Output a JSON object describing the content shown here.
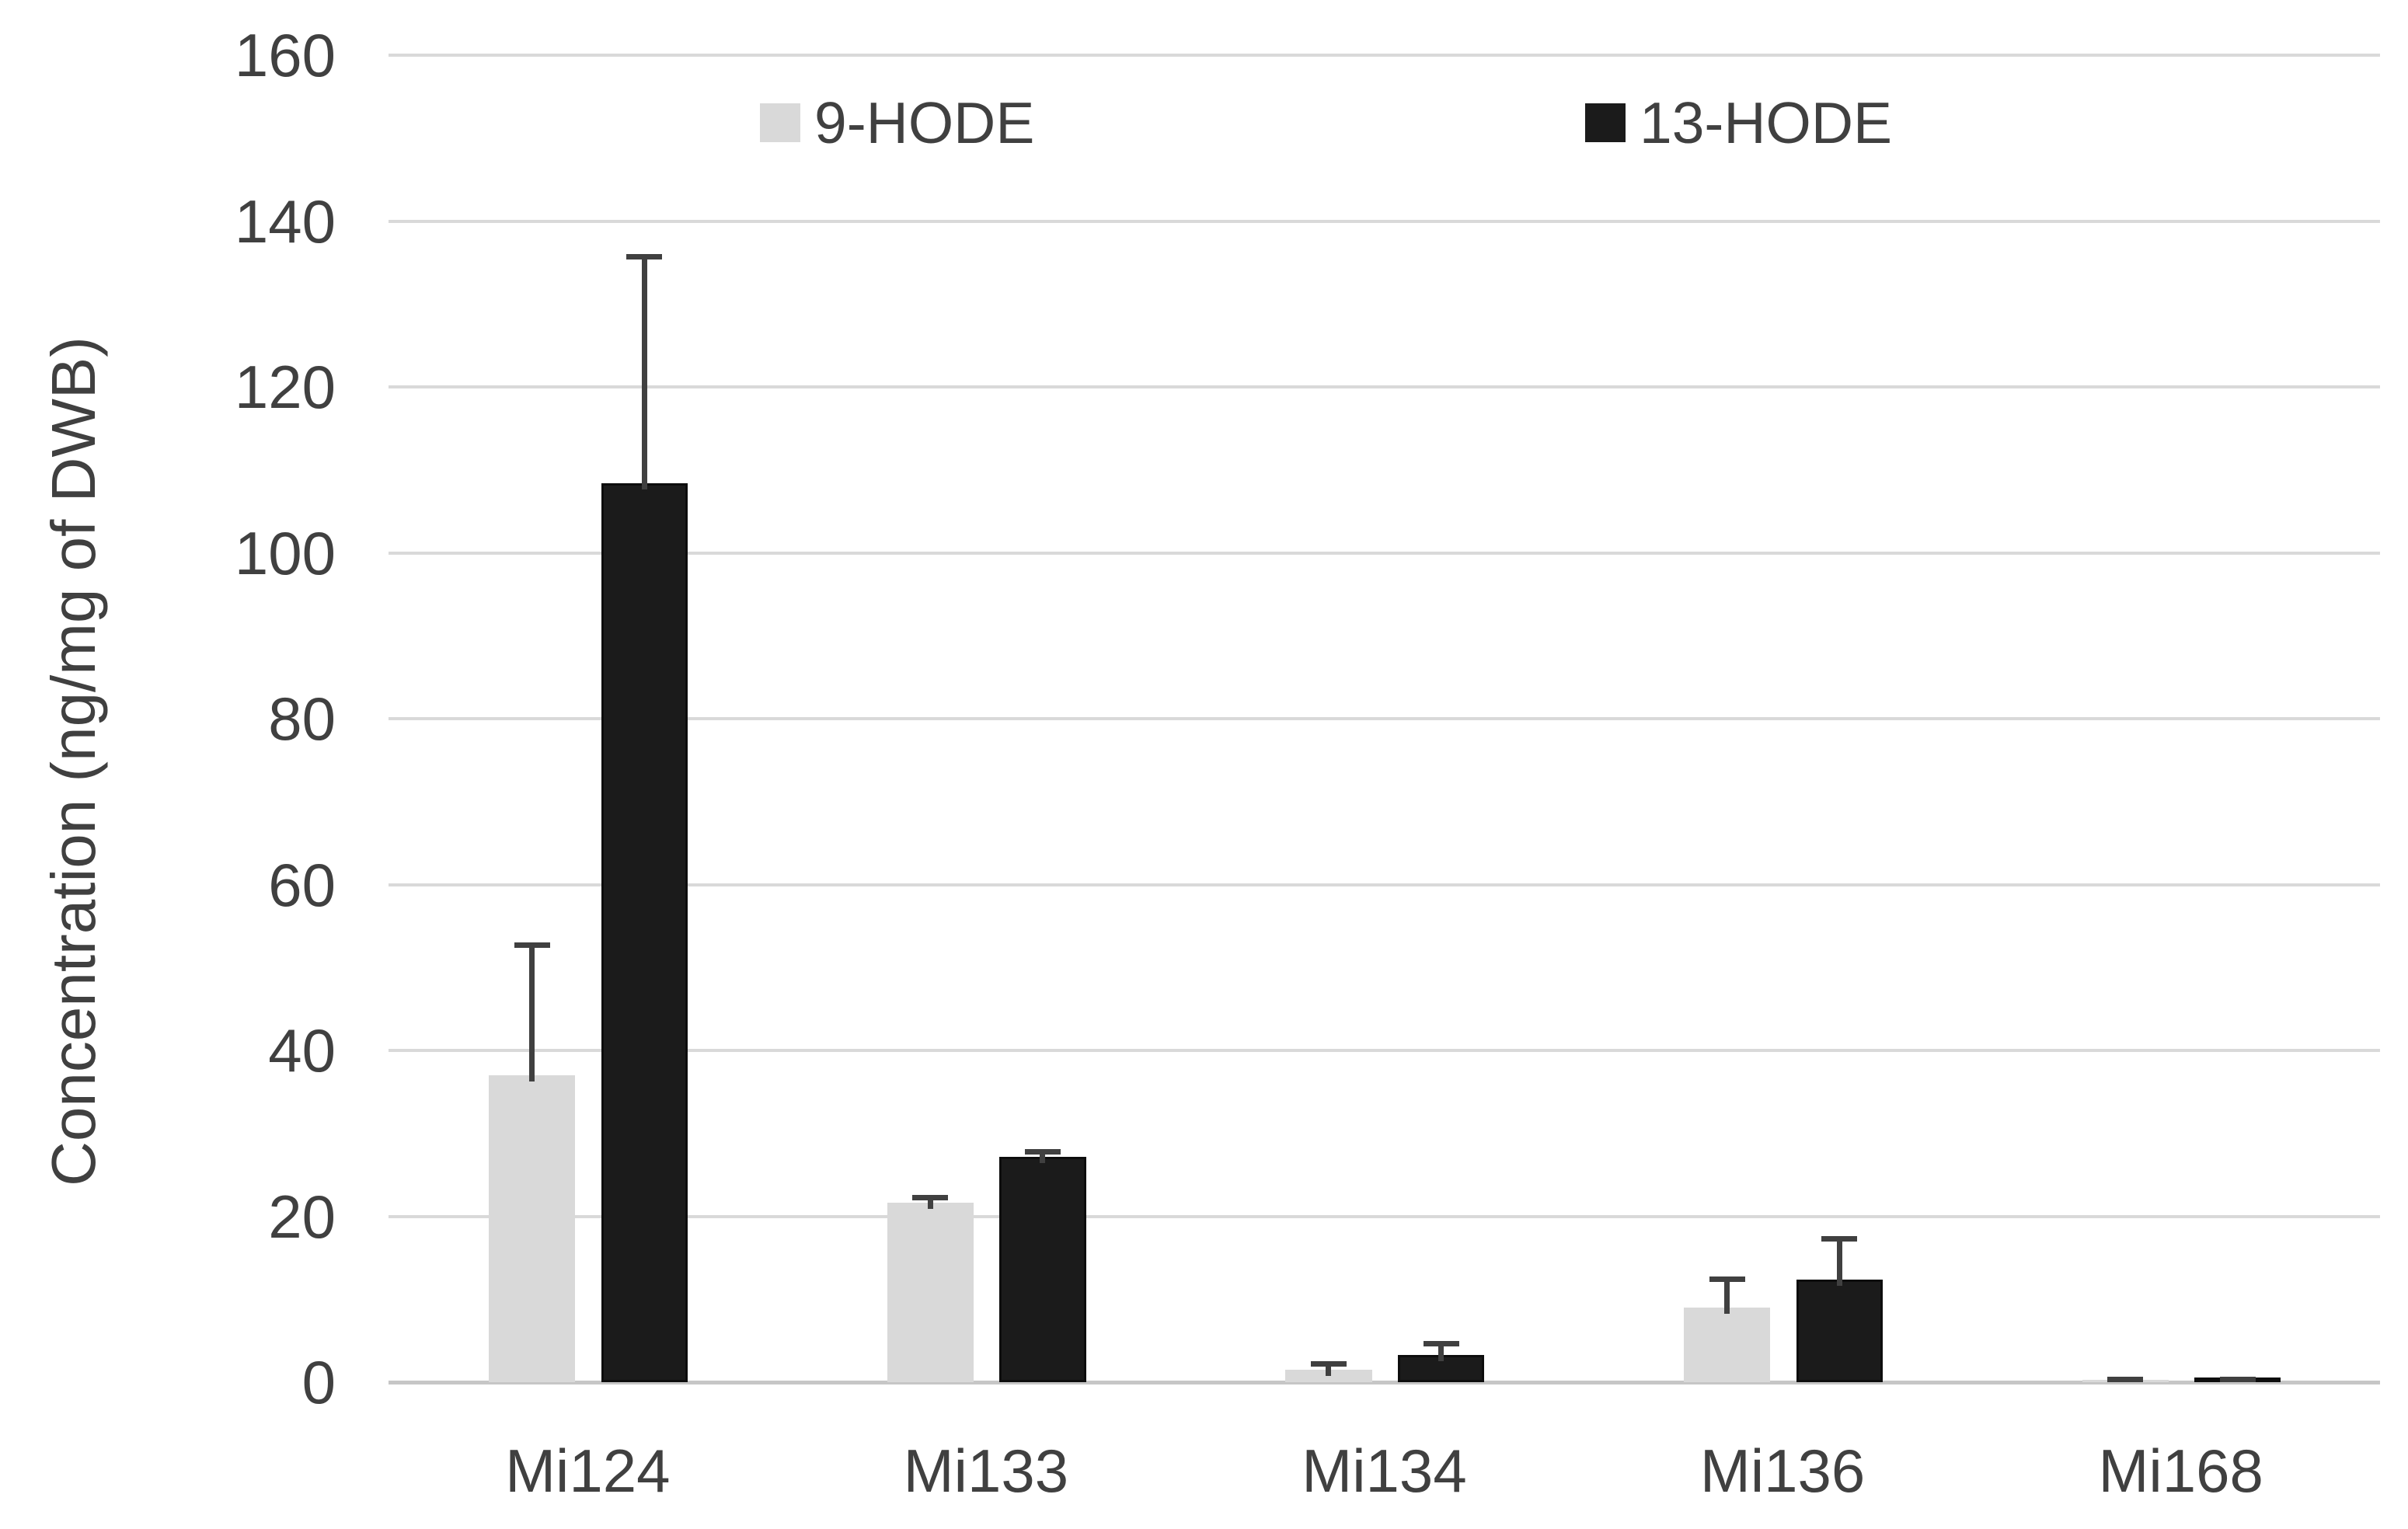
{
  "y_axis": {
    "title": "Concentration (ng/mg of DWB)"
  },
  "legend": {
    "items": [
      {
        "label": "9-HODE",
        "color": "#d9d9d9"
      },
      {
        "label": "13-HODE",
        "color": "#1b1b1b"
      }
    ]
  },
  "chart_data": {
    "type": "bar",
    "title": "",
    "xlabel": "",
    "ylabel": "Concentration (ng/mg of DWB)",
    "categories": [
      "Mi124",
      "Mi133",
      "Mi134",
      "Mi136",
      "Mi168"
    ],
    "series": [
      {
        "name": "9-HODE",
        "color": "#d9d9d9",
        "border": "none",
        "values": [
          37,
          21.6,
          1.5,
          9,
          0.3
        ],
        "errors_plus": [
          16,
          1,
          1,
          3.7,
          0.4
        ]
      },
      {
        "name": "13-HODE",
        "color": "#1b1b1b",
        "border": "#0d0d0d",
        "values": [
          108.4,
          27.2,
          3.3,
          12.4,
          0.3
        ],
        "errors_plus": [
          27.6,
          0.9,
          1.7,
          5.2,
          0.4
        ]
      }
    ],
    "ylim": [
      0,
      160
    ],
    "yticks": [
      0,
      20,
      40,
      60,
      80,
      100,
      120,
      140,
      160
    ],
    "grid": "horizontal-only",
    "gridline_color": "#d9d9d9",
    "error_bar_color": "#404040",
    "text_color": "#404040",
    "legend_position": "top-inside"
  }
}
